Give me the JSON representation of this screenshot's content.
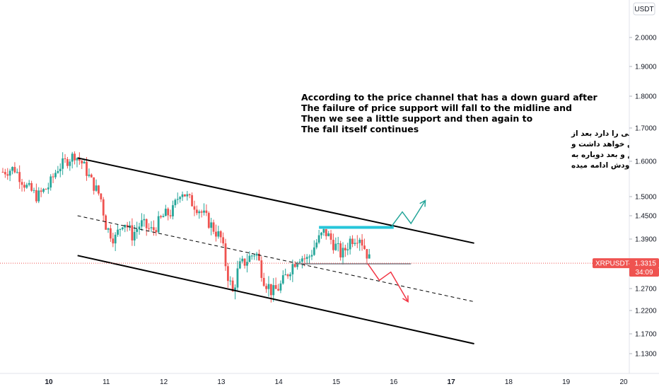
{
  "currency_label": "USDT",
  "price_axis": {
    "ticks": [
      2.0,
      1.9,
      1.8,
      1.7,
      1.6,
      1.5,
      1.45,
      1.39,
      1.27,
      1.22,
      1.17,
      1.13
    ],
    "tick_labels": [
      "2.0000",
      "1.9000",
      "1.8000",
      "1.7000",
      "1.6000",
      "1.5000",
      "1.4500",
      "1.3900",
      "1.2700",
      "1.2200",
      "1.1700",
      "1.1300"
    ]
  },
  "time_axis": {
    "labels": [
      "10",
      "11",
      "12",
      "13",
      "14",
      "15",
      "16",
      "17",
      "18",
      "19",
      "20"
    ],
    "bold_labels": [
      "10",
      "17"
    ]
  },
  "price_tag": {
    "symbol": "XRPUSDT",
    "separator": "·",
    "price": "1.3315",
    "countdown": "34:09",
    "color": "#ef5350"
  },
  "annotations": {
    "english": [
      "According to the price channel that has a down guard after",
      "The failure of price support will fall to the midline and",
      "Then we see a little support and then again to",
      "The fall itself continues"
    ],
    "persian": [
      "باتوجه با کانال قیمتی که گارد ریزشی را دارد بعد از",
      "شکست حمایت قیمت تا میدلاین ریزش خواهد داشت و",
      "بعد یک حمایت کوچکی رو میبینیم و بعد دوباره به",
      "ریزش خودش ادامه میده"
    ]
  },
  "colors": {
    "up": "#26a69a",
    "down": "#ef5350",
    "channel": "#000000",
    "support_line": "#787b86",
    "resistance_zone": "#26c6da",
    "bullish_path": "#26a69a",
    "bearish_path": "#f23645",
    "price_line": "#ef5350"
  },
  "chart_data": {
    "type": "candlestick",
    "symbol": "XRPUSDT",
    "ylim": [
      1.1,
      2.06
    ],
    "xlim": [
      9.2,
      20.2
    ],
    "price_levels_last": 1.3315,
    "candles_close_path": [
      [
        9.2,
        1.57
      ],
      [
        9.4,
        1.58
      ],
      [
        9.6,
        1.53
      ],
      [
        9.8,
        1.5
      ],
      [
        10.0,
        1.53
      ],
      [
        10.15,
        1.58
      ],
      [
        10.3,
        1.6
      ],
      [
        10.45,
        1.62
      ],
      [
        10.6,
        1.59
      ],
      [
        10.75,
        1.54
      ],
      [
        10.9,
        1.5
      ],
      [
        11.0,
        1.42
      ],
      [
        11.15,
        1.39
      ],
      [
        11.3,
        1.44
      ],
      [
        11.45,
        1.4
      ],
      [
        11.6,
        1.43
      ],
      [
        11.8,
        1.41
      ],
      [
        12.0,
        1.45
      ],
      [
        12.15,
        1.46
      ],
      [
        12.3,
        1.52
      ],
      [
        12.45,
        1.49
      ],
      [
        12.6,
        1.47
      ],
      [
        12.8,
        1.43
      ],
      [
        13.0,
        1.39
      ],
      [
        13.1,
        1.31
      ],
      [
        13.2,
        1.26
      ],
      [
        13.3,
        1.32
      ],
      [
        13.45,
        1.34
      ],
      [
        13.6,
        1.36
      ],
      [
        13.75,
        1.29
      ],
      [
        13.9,
        1.26
      ],
      [
        14.05,
        1.28
      ],
      [
        14.2,
        1.32
      ],
      [
        14.35,
        1.35
      ],
      [
        14.5,
        1.34
      ],
      [
        14.65,
        1.38
      ],
      [
        14.8,
        1.41
      ],
      [
        14.95,
        1.38
      ],
      [
        15.1,
        1.35
      ],
      [
        15.25,
        1.39
      ],
      [
        15.4,
        1.4
      ],
      [
        15.55,
        1.35
      ],
      [
        15.6,
        1.33
      ]
    ],
    "drawings": {
      "channel_upper": [
        [
          10.5,
          1.61
        ],
        [
          17.4,
          1.38
        ]
      ],
      "channel_mid": [
        [
          10.5,
          1.45
        ],
        [
          17.4,
          1.24
        ]
      ],
      "channel_lower": [
        [
          10.5,
          1.35
        ],
        [
          17.4,
          1.15
        ]
      ],
      "support_line": [
        [
          14.3,
          1.33
        ],
        [
          16.3,
          1.33
        ]
      ],
      "resistance_zone": [
        [
          14.7,
          1.42
        ],
        [
          16.0,
          1.42
        ]
      ],
      "bullish_projection": [
        [
          15.95,
          1.42
        ],
        [
          16.15,
          1.46
        ],
        [
          16.3,
          1.43
        ],
        [
          16.55,
          1.49
        ]
      ],
      "bearish_projection": [
        [
          15.55,
          1.33
        ],
        [
          15.75,
          1.29
        ],
        [
          15.95,
          1.31
        ],
        [
          16.25,
          1.24
        ]
      ]
    }
  }
}
